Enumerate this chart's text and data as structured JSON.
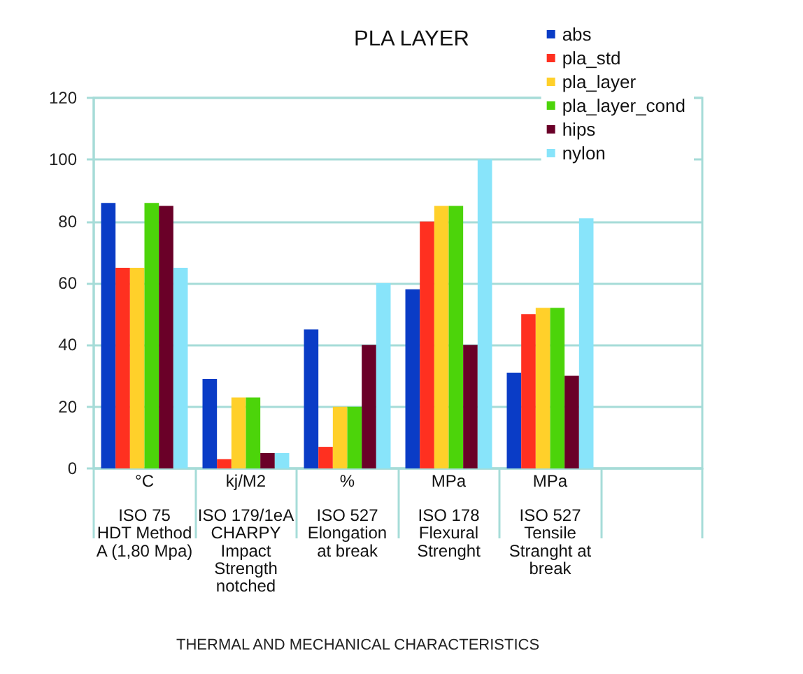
{
  "chart_data": {
    "type": "bar",
    "title": "PLA LAYER",
    "xlabel": "THERMAL AND MECHANICAL CHARACTERISTICS",
    "categories": [
      "°C\nISO 75\nHDT Method\nA (1,80 Mpa)",
      "kj/M2\nISO 179/1eA\nCHARPY\nImpact\nStrength\nnotched",
      "%\nISO 527\nElongation\nat break",
      "MPa\nISO 178\nFlexural\nStrenght",
      "MPa\nISO 527\nTensile\nStranght at\nbreak",
      null
    ],
    "series": [
      {
        "name": "abs",
        "color": "#0a3cc6",
        "values": [
          86,
          29,
          45,
          58,
          31,
          null
        ]
      },
      {
        "name": "pla_std",
        "color": "#ff3020",
        "values": [
          65,
          3,
          7,
          80,
          50,
          null
        ]
      },
      {
        "name": "pla_layer",
        "color": "#ffd02a",
        "values": [
          65,
          23,
          20,
          85,
          52,
          null
        ]
      },
      {
        "name": "pla_layer_cond",
        "color": "#4cd40a",
        "values": [
          86,
          23,
          20,
          85,
          52,
          null
        ]
      },
      {
        "name": "hips",
        "color": "#6a0028",
        "values": [
          85,
          5,
          40,
          40,
          30,
          null
        ]
      },
      {
        "name": "nylon",
        "color": "#88e4fa",
        "values": [
          65,
          5,
          60,
          100,
          81,
          null
        ]
      }
    ],
    "ylim": [
      0,
      120
    ],
    "yticks": [
      0,
      20,
      40,
      60,
      80,
      100,
      120
    ],
    "grid": "y",
    "legend": "top right"
  }
}
